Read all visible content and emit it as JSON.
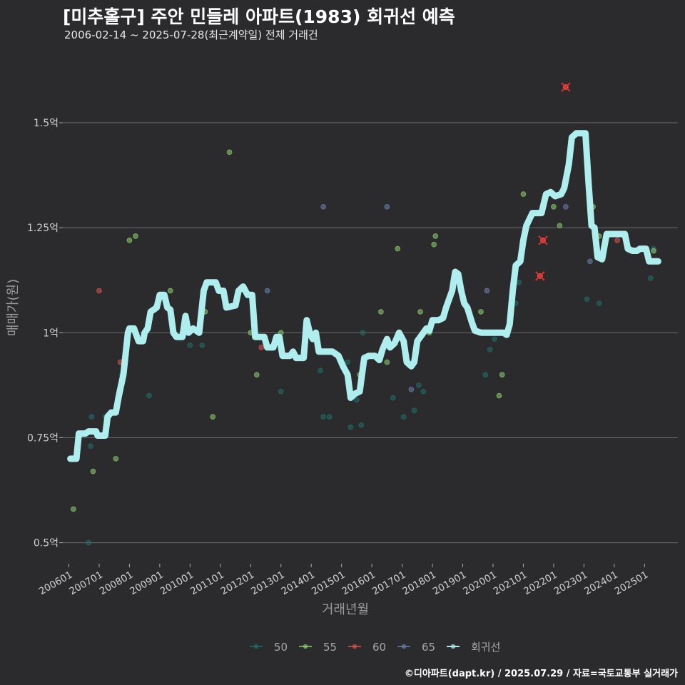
{
  "chart_data": {
    "type": "scatter",
    "title": "[미추홀구] 주안 민들레 아파트(1983) 회귀선 예측",
    "subtitle": "2006-02-14 ~ 2025-07-28(최근계약일) 전체 거래건",
    "xlabel": "거래년월",
    "ylabel": "매매가(원)",
    "xlim": [
      2005.8,
      2026.1
    ],
    "ylim": [
      0.45,
      1.67
    ],
    "y_ticks": [
      {
        "value": 0.5,
        "label": "0.5억"
      },
      {
        "value": 0.75,
        "label": "0.75억"
      },
      {
        "value": 1.0,
        "label": "1억"
      },
      {
        "value": 1.25,
        "label": "1.25억"
      },
      {
        "value": 1.5,
        "label": "1.5억"
      }
    ],
    "x_ticks": [
      {
        "value": 2006,
        "label": "200601"
      },
      {
        "value": 2007,
        "label": "200701"
      },
      {
        "value": 2008,
        "label": "200801"
      },
      {
        "value": 2009,
        "label": "200901"
      },
      {
        "value": 2010,
        "label": "201001"
      },
      {
        "value": 2011,
        "label": "201101"
      },
      {
        "value": 2012,
        "label": "201201"
      },
      {
        "value": 2013,
        "label": "201301"
      },
      {
        "value": 2014,
        "label": "201401"
      },
      {
        "value": 2015,
        "label": "201501"
      },
      {
        "value": 2016,
        "label": "201601"
      },
      {
        "value": 2017,
        "label": "201701"
      },
      {
        "value": 2018,
        "label": "201801"
      },
      {
        "value": 2019,
        "label": "201901"
      },
      {
        "value": 2020,
        "label": "202001"
      },
      {
        "value": 2021,
        "label": "202101"
      },
      {
        "value": 2022,
        "label": "202201"
      },
      {
        "value": 2023,
        "label": "202301"
      },
      {
        "value": 2024,
        "label": "202401"
      },
      {
        "value": 2025,
        "label": "202501"
      }
    ],
    "grid": true,
    "legend_position": "bottom",
    "legend": [
      {
        "name": "50",
        "color": "#1f6f6a"
      },
      {
        "name": "55",
        "color": "#8ccf6e"
      },
      {
        "name": "60",
        "color": "#d9534f"
      },
      {
        "name": "65",
        "color": "#6a7fb0"
      },
      {
        "name": "회귀선",
        "color": "#aeeeee"
      }
    ],
    "series": [
      {
        "name": "50",
        "color": "#1f6f6a",
        "points": [
          [
            2006.65,
            0.5
          ],
          [
            2006.72,
            0.73
          ],
          [
            2006.75,
            0.8
          ],
          [
            2007.2,
            0.8
          ],
          [
            2007.75,
            0.9
          ],
          [
            2008.65,
            0.85
          ],
          [
            2010.0,
            0.97
          ],
          [
            2010.4,
            0.97
          ],
          [
            2013.0,
            0.86
          ],
          [
            2014.3,
            0.91
          ],
          [
            2014.4,
            0.8
          ],
          [
            2014.6,
            0.8
          ],
          [
            2015.2,
            0.93
          ],
          [
            2015.3,
            0.775
          ],
          [
            2015.5,
            0.84
          ],
          [
            2015.65,
            0.78
          ],
          [
            2015.7,
            1.0
          ],
          [
            2016.7,
            0.845
          ],
          [
            2017.05,
            0.8
          ],
          [
            2017.4,
            0.815
          ],
          [
            2017.55,
            0.875
          ],
          [
            2017.7,
            0.86
          ],
          [
            2019.75,
            0.9
          ],
          [
            2019.9,
            0.96
          ],
          [
            2020.05,
            0.985
          ],
          [
            2020.45,
            1.0
          ],
          [
            2020.75,
            1.07
          ],
          [
            2020.85,
            1.12
          ],
          [
            2023.1,
            1.08
          ],
          [
            2023.5,
            1.07
          ],
          [
            2025.2,
            1.13
          ],
          [
            2025.3,
            1.2
          ]
        ]
      },
      {
        "name": "55",
        "color": "#8ccf6e",
        "points": [
          [
            2006.15,
            0.58
          ],
          [
            2006.8,
            0.67
          ],
          [
            2007.55,
            0.7
          ],
          [
            2008.0,
            1.22
          ],
          [
            2008.2,
            1.23
          ],
          [
            2009.35,
            1.1
          ],
          [
            2010.5,
            1.05
          ],
          [
            2011.3,
            1.43
          ],
          [
            2010.75,
            0.8
          ],
          [
            2012.0,
            1.0
          ],
          [
            2012.2,
            0.9
          ],
          [
            2013.0,
            1.0
          ],
          [
            2015.6,
            0.9
          ],
          [
            2016.3,
            1.05
          ],
          [
            2016.5,
            0.93
          ],
          [
            2016.85,
            1.2
          ],
          [
            2017.6,
            1.05
          ],
          [
            2017.9,
            1.0
          ],
          [
            2018.05,
            1.21
          ],
          [
            2018.1,
            1.23
          ],
          [
            2019.6,
            1.05
          ],
          [
            2020.2,
            0.85
          ],
          [
            2020.3,
            0.9
          ],
          [
            2021.0,
            1.33
          ],
          [
            2022.0,
            1.3
          ],
          [
            2022.2,
            1.255
          ],
          [
            2023.3,
            1.3
          ],
          [
            2023.5,
            1.23
          ],
          [
            2025.3,
            1.195
          ],
          [
            2017.2,
            0.93
          ]
        ]
      },
      {
        "name": "60",
        "color": "#d9534f",
        "points": [
          [
            2007.0,
            1.1
          ],
          [
            2007.7,
            0.93
          ],
          [
            2012.35,
            0.965
          ],
          [
            2021.55,
            1.135
          ],
          [
            2021.65,
            1.22
          ],
          [
            2022.4,
            1.585
          ],
          [
            2024.1,
            1.22
          ]
        ]
      },
      {
        "name": "65",
        "color": "#6a7fb0",
        "points": [
          [
            2012.55,
            1.1
          ],
          [
            2014.4,
            1.3
          ],
          [
            2016.5,
            1.3
          ],
          [
            2017.3,
            0.865
          ],
          [
            2019.8,
            1.1
          ],
          [
            2022.4,
            1.3
          ],
          [
            2023.2,
            1.17
          ]
        ]
      }
    ],
    "regression": {
      "name": "회귀선",
      "color": "#aeeeee",
      "points": [
        [
          2006.05,
          0.7
        ],
        [
          2006.25,
          0.7
        ],
        [
          2006.33,
          0.76
        ],
        [
          2006.55,
          0.76
        ],
        [
          2006.65,
          0.765
        ],
        [
          2006.9,
          0.765
        ],
        [
          2006.95,
          0.755
        ],
        [
          2007.2,
          0.755
        ],
        [
          2007.28,
          0.8
        ],
        [
          2007.4,
          0.81
        ],
        [
          2007.55,
          0.81
        ],
        [
          2007.65,
          0.85
        ],
        [
          2007.8,
          0.9
        ],
        [
          2007.95,
          1.0
        ],
        [
          2008.0,
          1.01
        ],
        [
          2008.15,
          1.01
        ],
        [
          2008.3,
          0.98
        ],
        [
          2008.45,
          0.98
        ],
        [
          2008.5,
          1.0
        ],
        [
          2008.6,
          1.01
        ],
        [
          2008.7,
          1.05
        ],
        [
          2008.9,
          1.06
        ],
        [
          2009.0,
          1.09
        ],
        [
          2009.15,
          1.09
        ],
        [
          2009.25,
          1.06
        ],
        [
          2009.35,
          1.055
        ],
        [
          2009.45,
          1.0
        ],
        [
          2009.55,
          0.99
        ],
        [
          2009.75,
          0.99
        ],
        [
          2009.85,
          1.04
        ],
        [
          2009.95,
          1.0
        ],
        [
          2010.1,
          1.01
        ],
        [
          2010.3,
          1.0
        ],
        [
          2010.45,
          1.1
        ],
        [
          2010.55,
          1.12
        ],
        [
          2010.85,
          1.12
        ],
        [
          2010.95,
          1.1
        ],
        [
          2011.1,
          1.1
        ],
        [
          2011.2,
          1.06
        ],
        [
          2011.5,
          1.065
        ],
        [
          2011.6,
          1.1
        ],
        [
          2011.75,
          1.11
        ],
        [
          2011.9,
          1.09
        ],
        [
          2012.05,
          1.09
        ],
        [
          2012.15,
          0.99
        ],
        [
          2012.45,
          0.99
        ],
        [
          2012.55,
          0.965
        ],
        [
          2012.75,
          0.965
        ],
        [
          2012.85,
          0.99
        ],
        [
          2012.95,
          0.99
        ],
        [
          2013.05,
          0.945
        ],
        [
          2013.3,
          0.945
        ],
        [
          2013.4,
          0.955
        ],
        [
          2013.5,
          0.94
        ],
        [
          2013.75,
          0.94
        ],
        [
          2013.85,
          1.03
        ],
        [
          2013.95,
          1.0
        ],
        [
          2014.05,
          0.985
        ],
        [
          2014.15,
          1.0
        ],
        [
          2014.25,
          0.955
        ],
        [
          2014.7,
          0.955
        ],
        [
          2014.9,
          0.945
        ],
        [
          2015.05,
          0.92
        ],
        [
          2015.2,
          0.9
        ],
        [
          2015.3,
          0.845
        ],
        [
          2015.45,
          0.855
        ],
        [
          2015.6,
          0.86
        ],
        [
          2015.75,
          0.94
        ],
        [
          2015.9,
          0.945
        ],
        [
          2016.1,
          0.945
        ],
        [
          2016.25,
          0.935
        ],
        [
          2016.35,
          0.96
        ],
        [
          2016.5,
          0.985
        ],
        [
          2016.6,
          0.965
        ],
        [
          2016.75,
          0.975
        ],
        [
          2016.9,
          1.0
        ],
        [
          2017.05,
          0.98
        ],
        [
          2017.15,
          0.93
        ],
        [
          2017.3,
          0.92
        ],
        [
          2017.4,
          0.93
        ],
        [
          2017.5,
          0.98
        ],
        [
          2017.65,
          0.995
        ],
        [
          2017.8,
          1.01
        ],
        [
          2017.9,
          1.005
        ],
        [
          2018.0,
          1.03
        ],
        [
          2018.2,
          1.03
        ],
        [
          2018.35,
          1.035
        ],
        [
          2018.45,
          1.06
        ],
        [
          2018.55,
          1.08
        ],
        [
          2018.65,
          1.1
        ],
        [
          2018.75,
          1.145
        ],
        [
          2018.85,
          1.14
        ],
        [
          2018.95,
          1.1
        ],
        [
          2019.05,
          1.07
        ],
        [
          2019.15,
          1.06
        ],
        [
          2019.3,
          1.025
        ],
        [
          2019.4,
          1.005
        ],
        [
          2019.6,
          1.0
        ],
        [
          2019.75,
          1.0
        ],
        [
          2019.95,
          1.0
        ],
        [
          2020.15,
          1.0
        ],
        [
          2020.35,
          1.0
        ],
        [
          2020.45,
          0.995
        ],
        [
          2020.55,
          1.02
        ],
        [
          2020.65,
          1.1
        ],
        [
          2020.75,
          1.16
        ],
        [
          2020.9,
          1.17
        ],
        [
          2021.0,
          1.22
        ],
        [
          2021.1,
          1.255
        ],
        [
          2021.3,
          1.285
        ],
        [
          2021.6,
          1.285
        ],
        [
          2021.75,
          1.33
        ],
        [
          2021.9,
          1.335
        ],
        [
          2022.05,
          1.325
        ],
        [
          2022.25,
          1.33
        ],
        [
          2022.35,
          1.345
        ],
        [
          2022.5,
          1.4
        ],
        [
          2022.6,
          1.465
        ],
        [
          2022.75,
          1.475
        ],
        [
          2023.05,
          1.475
        ],
        [
          2023.15,
          1.36
        ],
        [
          2023.25,
          1.255
        ],
        [
          2023.35,
          1.25
        ],
        [
          2023.45,
          1.18
        ],
        [
          2023.6,
          1.175
        ],
        [
          2023.75,
          1.235
        ],
        [
          2024.0,
          1.235
        ],
        [
          2024.35,
          1.235
        ],
        [
          2024.45,
          1.2
        ],
        [
          2024.6,
          1.195
        ],
        [
          2024.75,
          1.195
        ],
        [
          2024.85,
          1.2
        ],
        [
          2025.05,
          1.2
        ],
        [
          2025.15,
          1.17
        ],
        [
          2025.45,
          1.17
        ]
      ]
    },
    "x_marks": [
      [
        2021.55,
        1.135
      ],
      [
        2021.65,
        1.22
      ],
      [
        2022.4,
        1.585
      ]
    ]
  },
  "footer": "©디아파트(dapt.kr) / 2025.07.29 / 자료=국토교통부 실거래가"
}
